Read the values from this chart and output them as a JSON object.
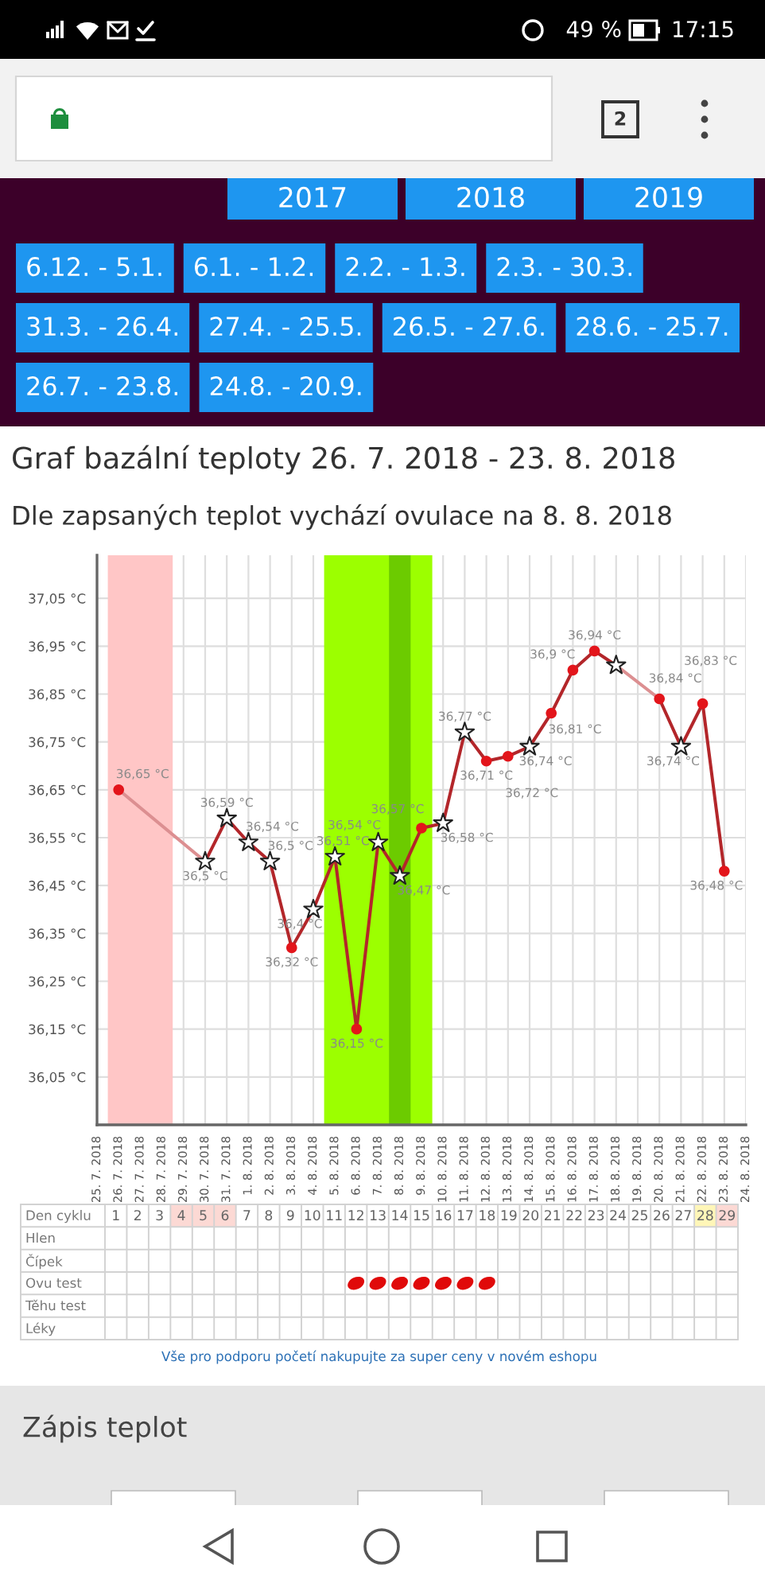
{
  "chart_data": [
    {
      "type": "other",
      "annotations": [
        "49 %",
        "17:15",
        "2"
      ]
    },
    {
      "type": "other",
      "categories": [
        "2017",
        "2018",
        "2019"
      ],
      "annotations": [
        "6.12. - 5.1.",
        "6.1. - 1.2.",
        "2.2. - 1.3.",
        "2.3. - 30.3.",
        "31.3. - 26.4.",
        "27.4. - 25.5.",
        "26.5. - 27.6.",
        "28.6. - 25.7.",
        "26.7. - 23.8.",
        "24.8. - 20.9."
      ]
    },
    {
      "type": "line",
      "title": "Graf bazální teploty 26. 7. 2018 - 23. 8. 2018",
      "subtitle": "Dle zapsaných teplot vychází ovulace na 8. 8. 2018",
      "x": [
        "2018-07-26",
        "2018-07-27",
        "2018-07-28",
        "2018-07-29",
        "2018-07-30",
        "2018-07-31",
        "2018-08-01",
        "2018-08-02",
        "2018-08-03",
        "2018-08-04",
        "2018-08-05",
        "2018-08-06",
        "2018-08-07",
        "2018-08-08",
        "2018-08-09",
        "2018-08-10",
        "2018-08-11",
        "2018-08-12",
        "2018-08-13",
        "2018-08-14",
        "2018-08-15",
        "2018-08-16",
        "2018-08-17",
        "2018-08-18",
        "2018-08-19",
        "2018-08-20",
        "2018-08-21",
        "2018-08-22",
        "2018-08-23"
      ],
      "series": [
        {
          "type": "line",
          "color": "#b3262a",
          "values": [
            null,
            null,
            null,
            null,
            36.5,
            36.59,
            36.54,
            36.5,
            36.32,
            36.4,
            36.51,
            36.15,
            36.54,
            36.47,
            36.57,
            36.58,
            36.77,
            36.71,
            36.72,
            36.74,
            36.81,
            36.9,
            36.94,
            36.91,
            null,
            36.84,
            36.74,
            36.83,
            36.48
          ]
        },
        {
          "type": "line",
          "color": "#dc8f91",
          "x": [
            "2018-07-26",
            "2018-07-30"
          ],
          "values": [
            36.65,
            36.5
          ]
        },
        {
          "type": "line",
          "color": "#dc8f91",
          "x": [
            "2018-08-18",
            "2018-08-20"
          ],
          "values": [
            36.91,
            36.84
          ]
        },
        {
          "type": "scatter",
          "marker": "circle",
          "color": "#e3151b",
          "values": [
            36.65,
            null,
            null,
            null,
            null,
            null,
            null,
            null,
            36.32,
            null,
            null,
            36.15,
            null,
            null,
            36.57,
            null,
            null,
            36.71,
            36.72,
            null,
            36.81,
            36.9,
            36.94,
            null,
            null,
            36.84,
            null,
            36.83,
            36.48
          ],
          "value_labels": [
            "36,65 °C",
            null,
            null,
            null,
            null,
            null,
            null,
            null,
            "36,32 °C",
            null,
            null,
            "36,15 °C",
            null,
            null,
            "36,57 °C",
            null,
            null,
            "36,71 °C",
            "36,72 °C",
            null,
            "36,81 °C",
            "36,9 °C",
            "36,94 °C",
            null,
            null,
            "36,84 °C",
            null,
            "36,83 °C",
            "36,48 °C"
          ]
        },
        {
          "type": "scatter",
          "marker": "star",
          "color": "#ffffff",
          "values": [
            null,
            null,
            null,
            null,
            36.5,
            36.59,
            36.54,
            36.5,
            null,
            36.4,
            36.51,
            null,
            36.54,
            36.47,
            null,
            36.58,
            36.77,
            null,
            null,
            36.74,
            null,
            null,
            null,
            36.91,
            null,
            null,
            36.74,
            null,
            null
          ],
          "value_labels": [
            null,
            null,
            null,
            null,
            "36,5 °C",
            "36,59 °C",
            "36,54 °C",
            "36,5 °C",
            null,
            "36,4 °C",
            "36,51 °C",
            null,
            "36,54 °C",
            "36,47 °C",
            null,
            "36,58 °C",
            "36,77 °C",
            null,
            null,
            "36,74 °C",
            null,
            null,
            null,
            null,
            null,
            null,
            "36,74 °C",
            null,
            null
          ]
        }
      ],
      "bands": [
        {
          "axis": "x",
          "from": "2018-07-25T12:00",
          "to": "2018-07-28T12:00",
          "color": "#ffc6c6"
        },
        {
          "axis": "x",
          "from": "2018-08-04T12:00",
          "to": "2018-08-09T12:00",
          "color": "#9cff00"
        },
        {
          "axis": "x",
          "from": "2018-08-07T12:00",
          "to": "2018-08-08T12:00",
          "color": "#6ccb00"
        }
      ],
      "xlim": [
        "2018-07-25",
        "2018-08-24"
      ],
      "xticks": [
        {
          "value": "2018-07-25",
          "label": "25. 7. 2018"
        },
        {
          "value": "2018-07-26",
          "label": "26. 7. 2018"
        },
        {
          "value": "2018-07-27",
          "label": "27. 7. 2018"
        },
        {
          "value": "2018-07-28",
          "label": "28. 7. 2018"
        },
        {
          "value": "2018-07-29",
          "label": "29. 7. 2018"
        },
        {
          "value": "2018-07-30",
          "label": "30. 7. 2018"
        },
        {
          "value": "2018-07-31",
          "label": "31. 7. 2018"
        },
        {
          "value": "2018-08-01",
          "label": "1. 8. 2018"
        },
        {
          "value": "2018-08-02",
          "label": "2. 8. 2018"
        },
        {
          "value": "2018-08-03",
          "label": "3. 8. 2018"
        },
        {
          "value": "2018-08-04",
          "label": "4. 8. 2018"
        },
        {
          "value": "2018-08-05",
          "label": "5. 8. 2018"
        },
        {
          "value": "2018-08-06",
          "label": "6. 8. 2018"
        },
        {
          "value": "2018-08-07",
          "label": "7. 8. 2018"
        },
        {
          "value": "2018-08-08",
          "label": "8. 8. 2018"
        },
        {
          "value": "2018-08-09",
          "label": "9. 8. 2018"
        },
        {
          "value": "2018-08-10",
          "label": "10. 8. 2018"
        },
        {
          "value": "2018-08-11",
          "label": "11. 8. 2018"
        },
        {
          "value": "2018-08-12",
          "label": "12. 8. 2018"
        },
        {
          "value": "2018-08-13",
          "label": "13. 8. 2018"
        },
        {
          "value": "2018-08-14",
          "label": "14. 8. 2018"
        },
        {
          "value": "2018-08-15",
          "label": "15. 8. 2018"
        },
        {
          "value": "2018-08-16",
          "label": "16. 8. 2018"
        },
        {
          "value": "2018-08-17",
          "label": "17. 8. 2018"
        },
        {
          "value": "2018-08-18",
          "label": "18. 8. 2018"
        },
        {
          "value": "2018-08-19",
          "label": "19. 8. 2018"
        },
        {
          "value": "2018-08-20",
          "label": "20. 8. 2018"
        },
        {
          "value": "2018-08-21",
          "label": "21. 8. 2018"
        },
        {
          "value": "2018-08-22",
          "label": "22. 8. 2018"
        },
        {
          "value": "2018-08-23",
          "label": "23. 8. 2018"
        },
        {
          "value": "2018-08-24",
          "label": "24. 8. 2018"
        }
      ],
      "ylim": [
        35.95,
        37.14
      ],
      "yticks": [
        {
          "value": 36.05,
          "label": "36,05 °C"
        },
        {
          "value": 36.15,
          "label": "36,15 °C"
        },
        {
          "value": 36.25,
          "label": "36,25 °C"
        },
        {
          "value": 36.35,
          "label": "36,35 °C"
        },
        {
          "value": 36.45,
          "label": "36,45 °C"
        },
        {
          "value": 36.55,
          "label": "36,55 °C"
        },
        {
          "value": 36.65,
          "label": "36,65 °C"
        },
        {
          "value": 36.75,
          "label": "36,75 °C"
        },
        {
          "value": 36.85,
          "label": "36,85 °C"
        },
        {
          "value": 36.95,
          "label": "36,95 °C"
        },
        {
          "value": 37.05,
          "label": "37,05 °C"
        }
      ],
      "grid": true
    },
    {
      "type": "heatmap",
      "xlabel": "Den cyklu",
      "categories": [
        "1",
        "2",
        "3",
        "4",
        "5",
        "6",
        "7",
        "8",
        "9",
        "10",
        "11",
        "12",
        "13",
        "14",
        "15",
        "16",
        "17",
        "18",
        "19",
        "20",
        "21",
        "22",
        "23",
        "24",
        "25",
        "26",
        "27",
        "28",
        "29"
      ],
      "colors": [
        "#ffffff",
        "#ffffff",
        "#ffffff",
        "#fcd9d4",
        "#fcd9d4",
        "#fcd9d4",
        "#ffffff",
        "#ffffff",
        "#ffffff",
        "#ffffff",
        "#ffffff",
        "#ffffff",
        "#ffffff",
        "#ffffff",
        "#ffffff",
        "#ffffff",
        "#ffffff",
        "#ffffff",
        "#ffffff",
        "#ffffff",
        "#ffffff",
        "#ffffff",
        "#ffffff",
        "#ffffff",
        "#ffffff",
        "#ffffff",
        "#ffffff",
        "#fff6b8",
        "#fcd9d4"
      ],
      "y_categories": [
        "Hlen",
        "Čípek",
        "Ovu test",
        "Těhu test",
        "Léky"
      ],
      "cells": [
        [
          null,
          null,
          null,
          null,
          null,
          null,
          null,
          null,
          null,
          null,
          null,
          null,
          null,
          null,
          null,
          null,
          null,
          null,
          null,
          null,
          null,
          null,
          null,
          null,
          null,
          null,
          null,
          null,
          null
        ],
        [
          null,
          null,
          null,
          null,
          null,
          null,
          null,
          null,
          null,
          null,
          null,
          null,
          null,
          null,
          null,
          null,
          null,
          null,
          null,
          null,
          null,
          null,
          null,
          null,
          null,
          null,
          null,
          null,
          null
        ],
        [
          null,
          null,
          null,
          null,
          null,
          null,
          null,
          null,
          null,
          null,
          null,
          true,
          true,
          true,
          true,
          true,
          true,
          true,
          null,
          null,
          null,
          null,
          null,
          null,
          null,
          null,
          null,
          null,
          null
        ],
        [
          null,
          null,
          null,
          null,
          null,
          null,
          null,
          null,
          null,
          null,
          null,
          null,
          null,
          null,
          null,
          null,
          null,
          null,
          null,
          null,
          null,
          null,
          null,
          null,
          null,
          null,
          null,
          null,
          null
        ],
        [
          null,
          null,
          null,
          null,
          null,
          null,
          null,
          null,
          null,
          null,
          null,
          null,
          null,
          null,
          null,
          null,
          null,
          null,
          null,
          null,
          null,
          null,
          null,
          null,
          null,
          null,
          null,
          null,
          null
        ]
      ],
      "annotations": [
        "Vše pro podporu početí nakupujte za super ceny v novém eshopu"
      ]
    },
    {
      "type": "other",
      "title": "Zápis teplot"
    }
  ]
}
